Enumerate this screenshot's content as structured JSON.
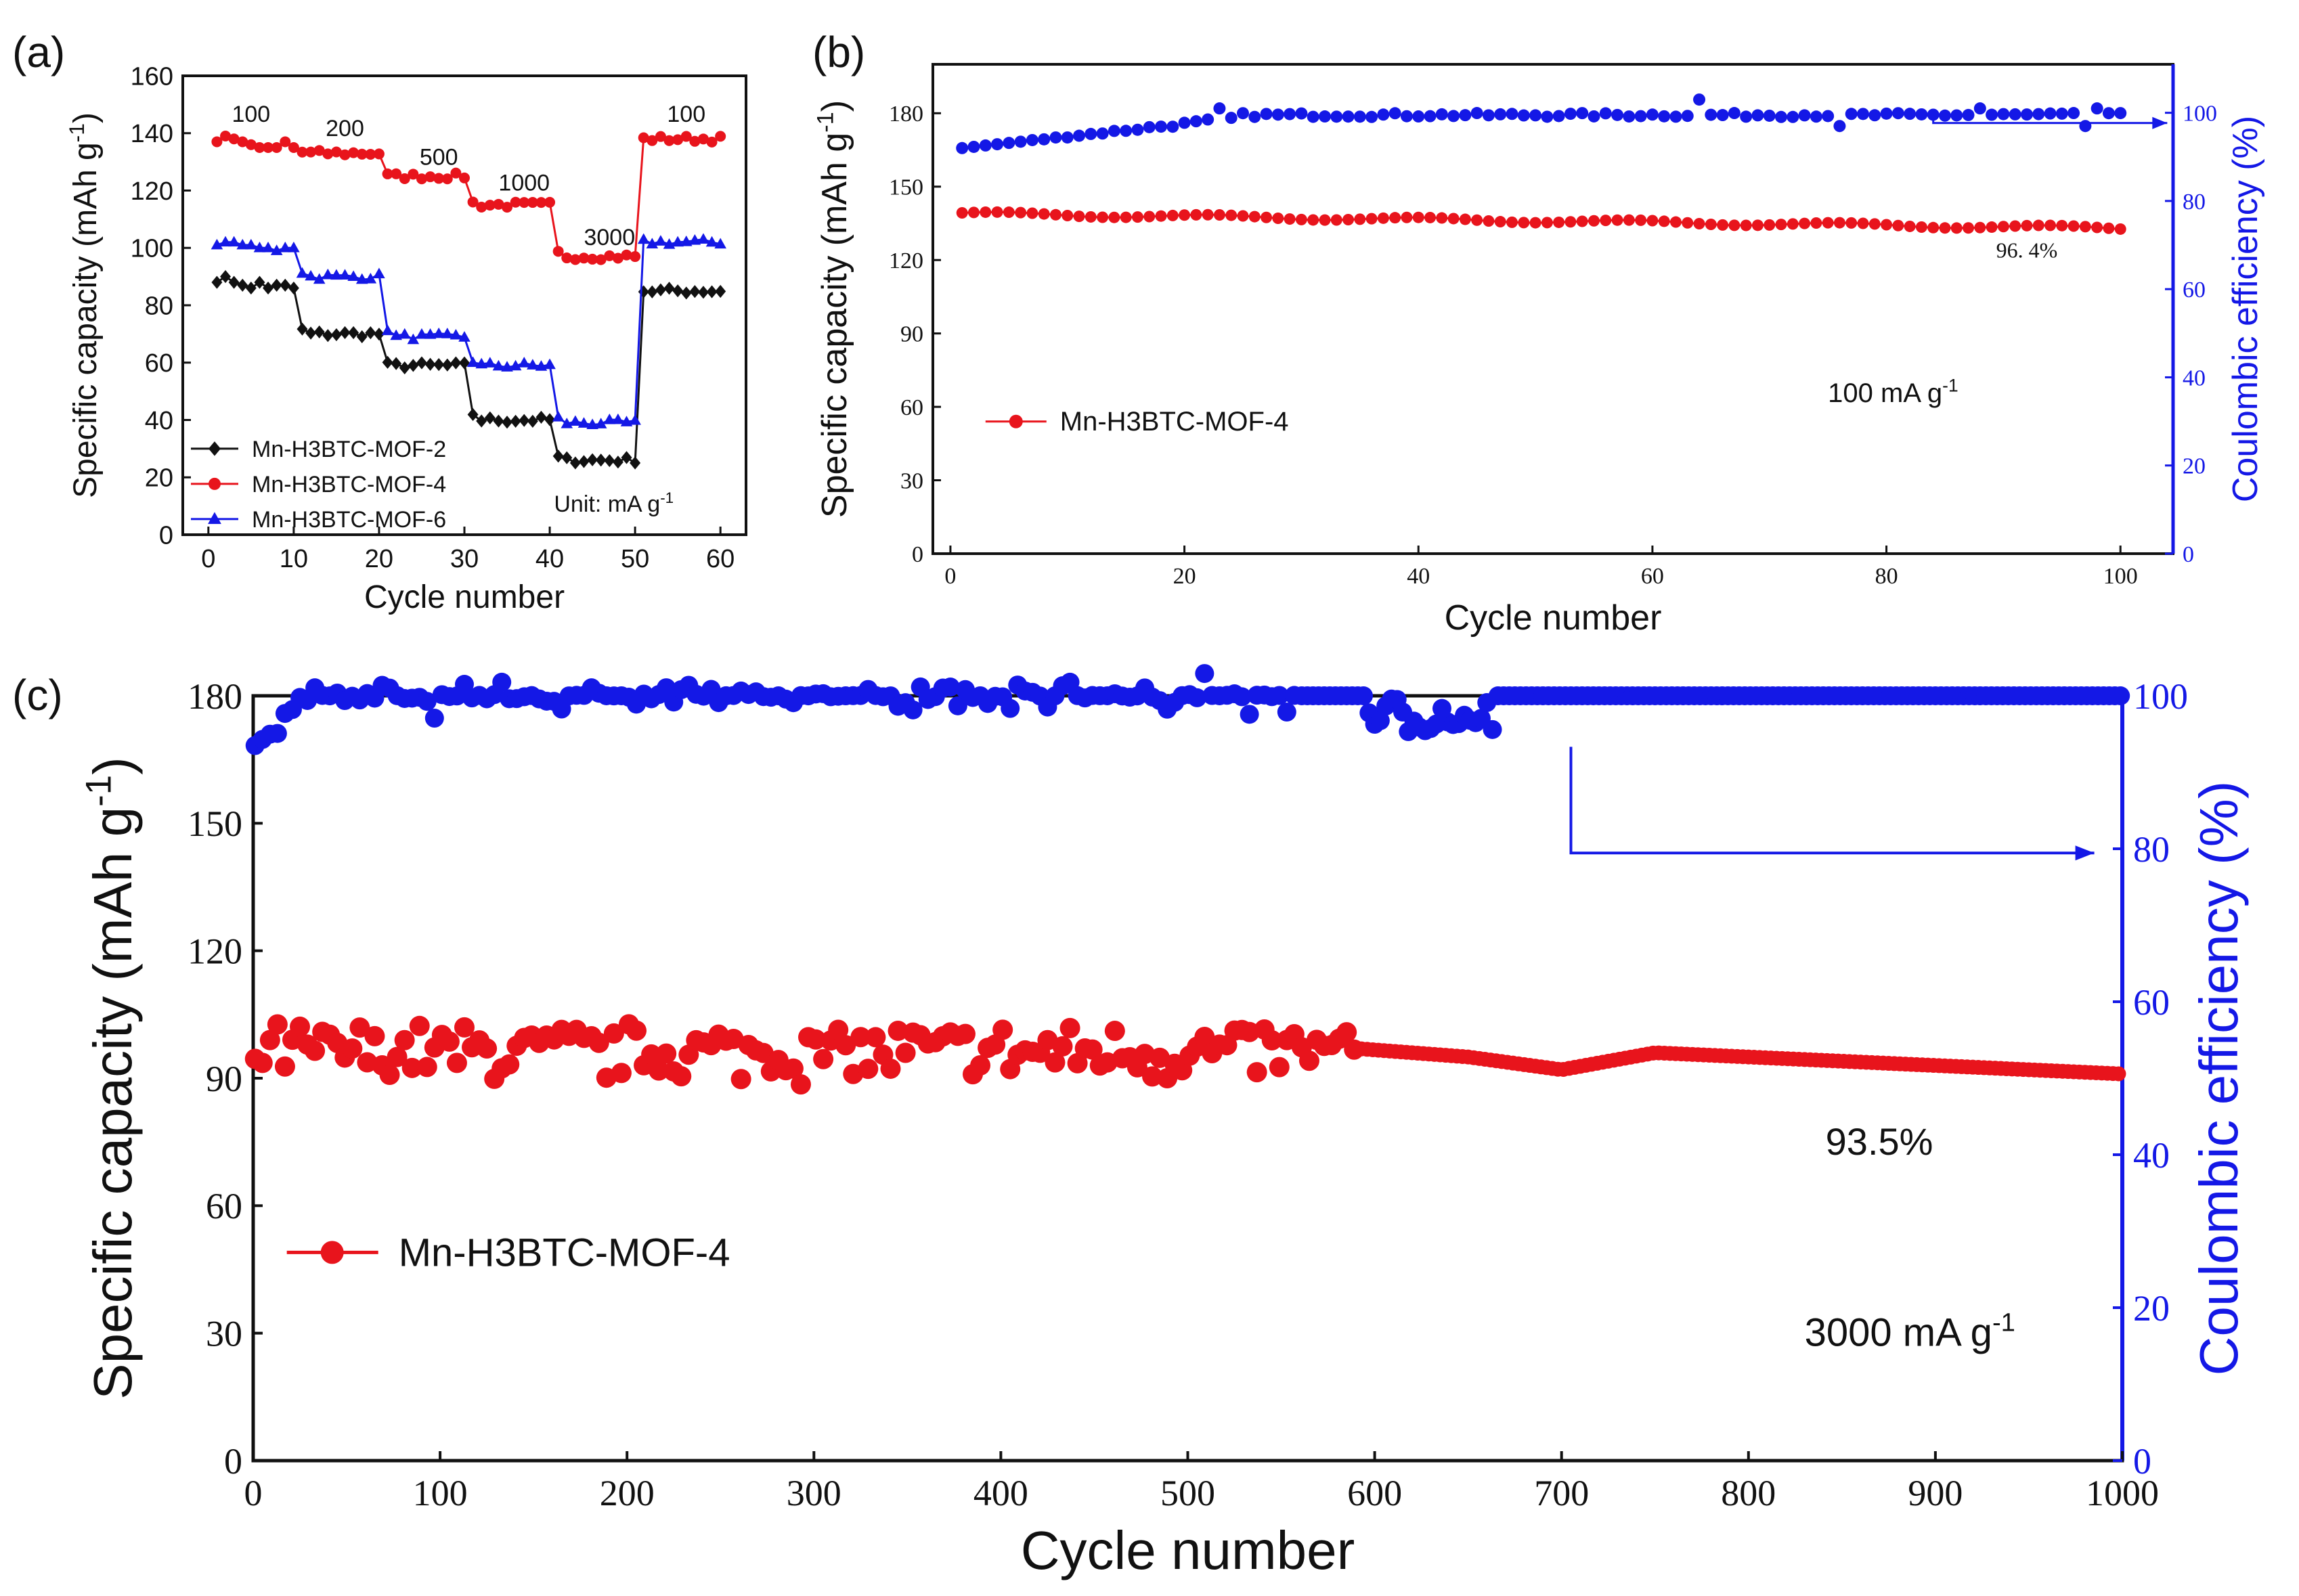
{
  "colors": {
    "black": "#111111",
    "red": "#e8141c",
    "blue": "#1418e6"
  },
  "panels": {
    "a": "(a)",
    "b": "(b)",
    "c": "(c)"
  },
  "chart_data": [
    {
      "id": "a",
      "type": "line",
      "xlabel": "Cycle number",
      "ylabel": "Specific capacity (mAh g",
      "ylabel_sup": "-1",
      "ylabel_end": ")",
      "xlim": [
        -3,
        63
      ],
      "ylim": [
        0,
        160
      ],
      "xticks": [
        "0",
        "10",
        "20",
        "30",
        "40",
        "50",
        "60"
      ],
      "xtick_values": [
        0,
        10,
        20,
        30,
        40,
        50,
        60
      ],
      "yticks": [
        "0",
        "20",
        "40",
        "60",
        "80",
        "100",
        "120",
        "140",
        "160"
      ],
      "ytick_values": [
        0,
        20,
        40,
        60,
        80,
        100,
        120,
        140,
        160
      ],
      "rate_labels": [
        {
          "text": "100",
          "x": 5,
          "y": 144
        },
        {
          "text": "200",
          "x": 16,
          "y": 139
        },
        {
          "text": "500",
          "x": 27,
          "y": 129
        },
        {
          "text": "1000",
          "x": 37,
          "y": 120
        },
        {
          "text": "3000",
          "x": 47,
          "y": 101
        },
        {
          "text": "100",
          "x": 56,
          "y": 144
        }
      ],
      "unit_note": {
        "text": "Unit: mA g",
        "sup": "-1"
      },
      "legend": [
        {
          "name": "Mn-H3BTC-MOF-2",
          "color": "#111111",
          "marker": "diamond"
        },
        {
          "name": "Mn-H3BTC-MOF-4",
          "color": "#e8141c",
          "marker": "circle"
        },
        {
          "name": "Mn-H3BTC-MOF-6",
          "color": "#1418e6",
          "marker": "triangle"
        }
      ],
      "series": [
        {
          "name": "Mn-H3BTC-MOF-2",
          "color": "#111111",
          "marker": "diamond",
          "levels": [
            87,
            70,
            59,
            40,
            26,
            85
          ],
          "first_pts": [
            [
              1,
              88
            ],
            [
              2,
              90
            ],
            [
              3,
              88
            ],
            [
              4,
              87
            ],
            [
              5,
              86
            ],
            [
              6,
              88
            ],
            [
              7,
              86
            ],
            [
              8,
              87
            ],
            [
              9,
              87
            ],
            [
              10,
              86
            ]
          ]
        },
        {
          "name": "Mn-H3BTC-MOF-4",
          "color": "#e8141c",
          "marker": "circle",
          "levels": [
            137,
            133,
            125,
            115,
            97,
            138
          ],
          "first_pts": [
            [
              1,
              137
            ],
            [
              2,
              139
            ],
            [
              3,
              138
            ],
            [
              4,
              137
            ],
            [
              5,
              136
            ],
            [
              6,
              135
            ],
            [
              7,
              135
            ],
            [
              8,
              135
            ],
            [
              9,
              137
            ],
            [
              10,
              135
            ]
          ]
        },
        {
          "name": "Mn-H3BTC-MOF-6",
          "color": "#1418e6",
          "marker": "triangle",
          "levels": [
            101,
            90,
            69,
            59,
            39,
            102
          ],
          "first_pts": [
            [
              1,
              101
            ],
            [
              2,
              102
            ],
            [
              3,
              102
            ],
            [
              4,
              101
            ],
            [
              5,
              101
            ],
            [
              6,
              100
            ],
            [
              7,
              100
            ],
            [
              8,
              99
            ],
            [
              9,
              100
            ],
            [
              10,
              100
            ]
          ]
        }
      ]
    },
    {
      "id": "b",
      "type": "line",
      "xlabel": "Cycle number",
      "ylabel": "Specific capacity (mAh g",
      "ylabel_sup": "-1",
      "ylabel_end": ")",
      "y2label": "Coulombic efficiency (%)",
      "xlim": [
        -1.5,
        104.5
      ],
      "ylim": [
        0,
        200
      ],
      "y2lim": [
        0,
        111
      ],
      "xticks": [
        "0",
        "20",
        "40",
        "60",
        "80",
        "100"
      ],
      "xtick_values": [
        0,
        20,
        40,
        60,
        80,
        100
      ],
      "yticks": [
        "0",
        "30",
        "60",
        "90",
        "120",
        "150",
        "180"
      ],
      "ytick_values": [
        0,
        30,
        60,
        90,
        120,
        150,
        180
      ],
      "y2ticks": [
        "0",
        "20",
        "40",
        "60",
        "80",
        "100"
      ],
      "y2tick_values": [
        0,
        20,
        40,
        60,
        80,
        100
      ],
      "legend": [
        {
          "name": "Mn-H3BTC-MOF-4",
          "color": "#e8141c",
          "marker": "circle"
        }
      ],
      "current_label": {
        "text": "100 mA g",
        "sup": "-1",
        "x": 75,
        "y": 62
      },
      "retention_label": {
        "text": "96. 4%",
        "x": 92,
        "y": 121
      },
      "capacity": {
        "start": 139,
        "end": 133,
        "cycles": 100
      },
      "efficiency": {
        "start": 92,
        "plateau": 99.5,
        "cycles": 100,
        "outliers": [
          [
            23,
            101
          ],
          [
            64,
            103
          ],
          [
            76,
            97
          ],
          [
            88,
            101
          ],
          [
            97,
            97
          ],
          [
            98,
            101
          ]
        ]
      },
      "arrow": {
        "from_x": 84,
        "from_y": 180,
        "to_x": 104,
        "to_y": 176
      }
    },
    {
      "id": "c",
      "type": "scatter",
      "xlabel": "Cycle number",
      "ylabel": "Specific capacity (mAh g",
      "ylabel_sup": "-1",
      "ylabel_end": ")",
      "y2label": "Coulombic efficiency (%)",
      "xlim": [
        0,
        1000
      ],
      "ylim": [
        0,
        180
      ],
      "y2lim": [
        0,
        100
      ],
      "xticks": [
        "0",
        "100",
        "200",
        "300",
        "400",
        "500",
        "600",
        "700",
        "800",
        "900",
        "1000"
      ],
      "xtick_values": [
        0,
        100,
        200,
        300,
        400,
        500,
        600,
        700,
        800,
        900,
        1000
      ],
      "yticks": [
        "0",
        "30",
        "60",
        "90",
        "120",
        "150",
        "180"
      ],
      "ytick_values": [
        0,
        30,
        60,
        90,
        120,
        150,
        180
      ],
      "y2ticks": [
        "0",
        "20",
        "40",
        "60",
        "80",
        "100"
      ],
      "y2tick_values": [
        0,
        20,
        40,
        60,
        80,
        100
      ],
      "legend": [
        {
          "name": "Mn-H3BTC-MOF-4",
          "color": "#e8141c",
          "marker": "circle"
        }
      ],
      "current_label": {
        "text": "3000 mA g",
        "sup": "-1",
        "x": 830,
        "y": 27
      },
      "retention_label": {
        "text": "93.5%",
        "x": 870,
        "y": 72
      },
      "capacity": {
        "noisy_until": 590,
        "mean": 96,
        "spread": 8,
        "smooth": [
          [
            590,
            97
          ],
          [
            650,
            95
          ],
          [
            700,
            92
          ],
          [
            750,
            96
          ],
          [
            1000,
            91
          ]
        ]
      },
      "efficiency": {
        "start": 93,
        "plateau": 100,
        "noisy_until": 560,
        "spread": 4,
        "dip_region": [
          595,
          665
        ]
      },
      "arrow": {
        "from_x": 705,
        "from_y": 168,
        "to_x": 985,
        "to_y": 143
      }
    }
  ]
}
